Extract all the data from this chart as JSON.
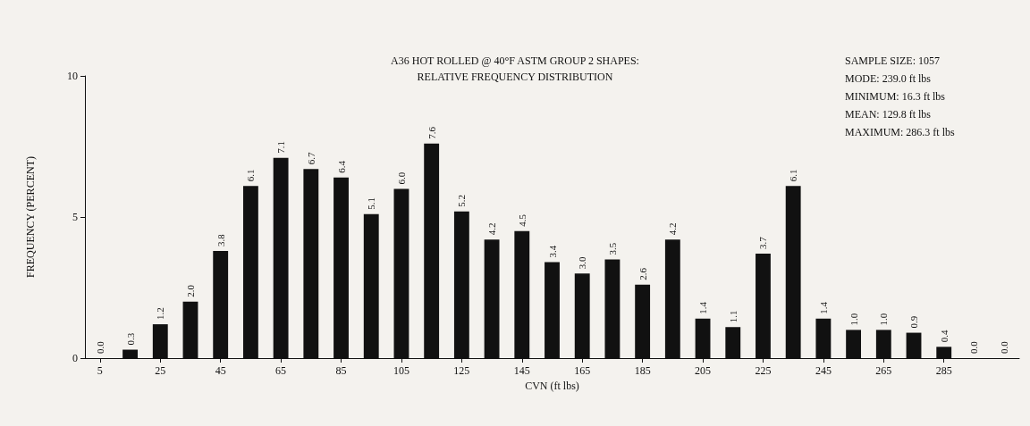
{
  "chart_data": {
    "type": "histogram",
    "title": "A36 HOT ROLLED @ 40°F ASTM GROUP 2 SHAPES:\nRELATIVE FREQUENCY DISTRIBUTION",
    "xlabel": "CVN (ft lbs)",
    "ylabel": "FREQUENCY (PERCENT)",
    "bins": [
      0,
      10,
      20,
      30,
      40,
      50,
      60,
      70,
      80,
      90,
      100,
      110,
      120,
      130,
      140,
      150,
      160,
      170,
      180,
      190,
      200,
      210,
      220,
      230,
      240,
      250,
      260,
      270,
      280,
      290,
      300,
      310
    ],
    "values": [
      0.0,
      0.3,
      1.2,
      2.0,
      3.8,
      6.1,
      7.1,
      6.7,
      6.4,
      5.1,
      6.0,
      7.6,
      5.2,
      4.2,
      4.5,
      3.4,
      3.0,
      3.5,
      2.6,
      4.2,
      1.4,
      1.1,
      3.7,
      6.1,
      1.4,
      1.0,
      1.0,
      0.9,
      0.4,
      0.0,
      0.0
    ],
    "color": "#111111",
    "value_labels": [
      "0.0",
      "0.3",
      "1.2",
      "2.0",
      "3.8",
      "6.1",
      "7.1",
      "6.7",
      "6.4",
      "5.1",
      "6.0",
      "7.6",
      "5.2",
      "4.2",
      "4.5",
      "3.4",
      "3.0",
      "3.5",
      "2.6",
      "4.2",
      "1.4",
      "1.1",
      "3.7",
      "6.1",
      "1.4",
      "1.0",
      "1.0",
      "0.9",
      "0.4",
      "0.0",
      "0.0"
    ],
    "xlim": [
      0,
      310
    ],
    "xticks": [
      5,
      25,
      45,
      65,
      85,
      105,
      125,
      145,
      165,
      185,
      205,
      225,
      245,
      265,
      285
    ],
    "ylim": [
      0,
      10
    ],
    "yticks": [
      0,
      5,
      10
    ],
    "annotations": [
      "SAMPLE SIZE: 1057",
      "MODE: 239.0 ft lbs",
      "MINIMUM: 16.3 ft lbs",
      "MEAN: 129.8 ft lbs",
      "MAXIMUM: 286.3 ft lbs"
    ]
  }
}
